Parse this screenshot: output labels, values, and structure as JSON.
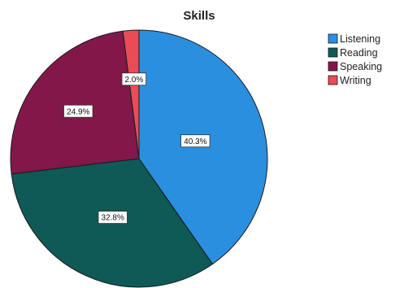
{
  "chart_data": {
    "type": "pie",
    "title": "Skills",
    "categories": [
      "Listening",
      "Reading",
      "Speaking",
      "Writing"
    ],
    "values": [
      40.3,
      32.8,
      24.9,
      2.0
    ],
    "data_labels": [
      "40.3%",
      "32.8%",
      "24.9%",
      "2.0%"
    ],
    "colors": [
      "#2b8fe0",
      "#0f5956",
      "#82174a",
      "#ea4c55"
    ],
    "legend": {
      "position": "top-right",
      "entries": [
        "Listening",
        "Reading",
        "Speaking",
        "Writing"
      ]
    }
  }
}
